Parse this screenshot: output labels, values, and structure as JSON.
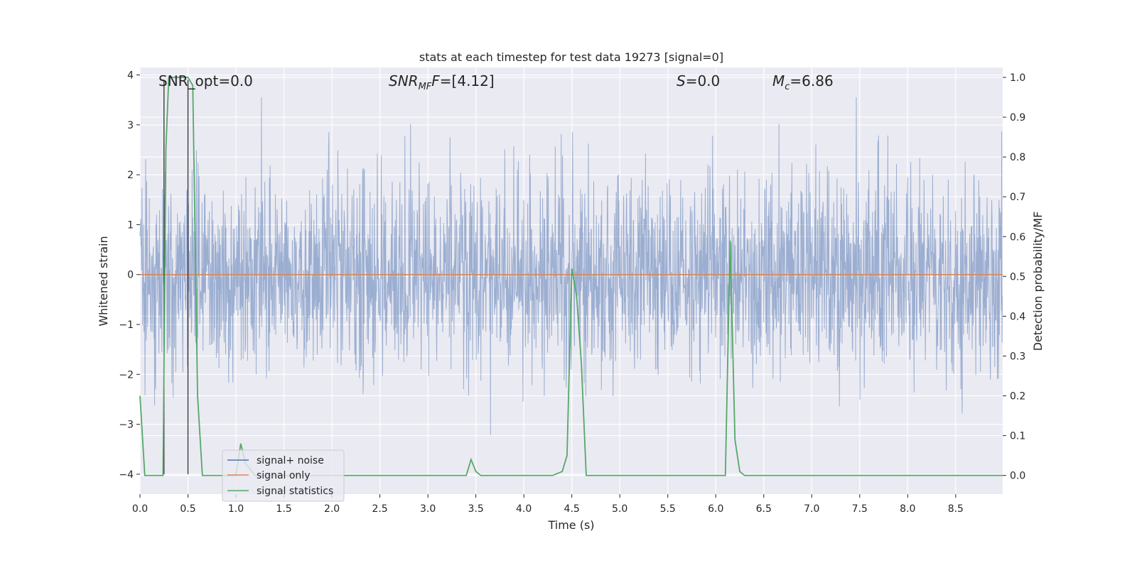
{
  "chart_data": {
    "type": "line",
    "title": "stats at each timestep for test data 19273 [signal=0]",
    "xlabel": "Time (s)",
    "ylabel_left": "Whitened strain",
    "ylabel_right": "Detection probability/MF",
    "xlim": [
      0.0,
      8.99
    ],
    "ylim_left": [
      -4.4,
      4.15
    ],
    "ylim_right": [
      -0.047,
      1.025
    ],
    "x_ticks": [
      "0.0",
      "0.5",
      "1.0",
      "1.5",
      "2.0",
      "2.5",
      "3.0",
      "3.5",
      "4.0",
      "4.5",
      "5.0",
      "5.5",
      "6.0",
      "6.5",
      "7.0",
      "7.5",
      "8.0",
      "8.5"
    ],
    "y_ticks_left": [
      "4",
      "3",
      "2",
      "1",
      "0",
      "−1",
      "−2",
      "−3",
      "−4"
    ],
    "y_ticks_right": [
      "1.0",
      "0.9",
      "0.8",
      "0.7",
      "0.6",
      "0.5",
      "0.4",
      "0.3",
      "0.2",
      "0.1",
      "0.0"
    ],
    "grid": true,
    "legend_position": "lower-left",
    "annotations": {
      "snr_opt": "SNR_opt=0.0",
      "snr_mf_main": "SNR",
      "snr_mf_sub": "MF",
      "snr_mf_value": "=[4.12]",
      "s_main": "S",
      "s_value": "=0.0",
      "mc_main": "M",
      "mc_sub": "c",
      "mc_value": "=6.86"
    },
    "vertical_markers": [
      0.25,
      0.5
    ],
    "series": [
      {
        "name": "signal+ noise",
        "axis": "left",
        "color": "#4c72b0",
        "description_band": "dense noise, |strain| mostly < 2, spikes up to ~3.5 and down to ~-3.7"
      },
      {
        "name": "signal only",
        "axis": "left",
        "color": "#dd8452",
        "constant_value": 0.0
      },
      {
        "name": "signal statistics",
        "axis": "right",
        "color": "#55a868",
        "x": [
          0.0,
          0.05,
          0.1,
          0.15,
          0.2,
          0.24,
          0.27,
          0.3,
          0.35,
          0.4,
          0.45,
          0.5,
          0.55,
          0.6,
          0.65,
          0.7,
          0.8,
          0.9,
          1.0,
          1.05,
          1.1,
          1.2,
          1.3,
          1.4,
          1.6,
          2.0,
          2.5,
          3.0,
          3.4,
          3.45,
          3.5,
          3.55,
          3.6,
          3.7,
          3.8,
          3.9,
          4.0,
          4.3,
          4.4,
          4.45,
          4.5,
          4.55,
          4.6,
          4.65,
          4.7,
          4.75,
          4.8,
          5.0,
          5.5,
          6.0,
          6.1,
          6.15,
          6.2,
          6.25,
          6.3,
          6.35,
          7.0,
          8.0,
          8.99
        ],
        "values": [
          0.2,
          0.0,
          0.0,
          0.0,
          0.0,
          0.0,
          0.82,
          1.0,
          1.0,
          1.0,
          1.0,
          1.0,
          0.98,
          0.2,
          0.0,
          0.0,
          0.0,
          0.0,
          0.0,
          0.08,
          0.03,
          0.0,
          0.0,
          0.0,
          0.0,
          0.0,
          0.0,
          0.0,
          0.0,
          0.04,
          0.01,
          0.0,
          0.0,
          0.0,
          0.0,
          0.0,
          0.0,
          0.0,
          0.01,
          0.05,
          0.52,
          0.45,
          0.28,
          0.0,
          0.0,
          0.0,
          0.0,
          0.0,
          0.0,
          0.0,
          0.0,
          0.59,
          0.09,
          0.01,
          0.0,
          0.0,
          0.0,
          0.0,
          0.0
        ]
      }
    ]
  }
}
